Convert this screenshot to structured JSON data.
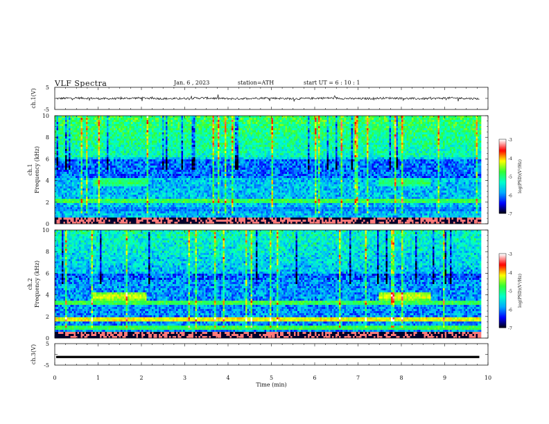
{
  "header": {
    "title": "VLF  Spectra",
    "date": "Jan. 6  , 2023",
    "station": "station=ATH",
    "start": "start  UT  =   6  : 10 : 1"
  },
  "chart_data": [
    {
      "type": "line",
      "panel": "ch1-waveform",
      "ylabel": "ch.1(V)",
      "ylim": [
        -5,
        5
      ],
      "y_ticks": [
        "5",
        "-5"
      ],
      "xlim": [
        0,
        10
      ],
      "description_level": "waveform fluctuating around 0 V with amplitude about 0.5 V, occasional spikes",
      "approx_level": 0
    },
    {
      "type": "heatmap",
      "panel": "ch1-spectrogram",
      "ylabel": "ch.1\nFrequency  (kHz)",
      "ylabel_top": "ch.1",
      "ylabel_bottom": "Frequency  (kHz)",
      "ylim": [
        0,
        10
      ],
      "y_ticks": [
        "0",
        "2",
        "4",
        "6",
        "8",
        "10"
      ],
      "xlim": [
        0,
        10
      ],
      "colorbar": {
        "label": "log(PSD)(V²/Hz)",
        "range": [
          -7,
          -3
        ],
        "ticks": [
          "-3",
          "-4",
          "-5",
          "-6",
          "-7"
        ]
      },
      "bands_khz": [
        {
          "freq": 0.5,
          "level": -4.3
        },
        {
          "freq": 1.5,
          "level": -6.0
        },
        {
          "freq": 2.2,
          "level": -4.8
        },
        {
          "freq": 4.0,
          "level": -4.9,
          "x_ranges": [
            [
              0.85,
              2.1
            ],
            [
              7.45,
              8.65
            ]
          ]
        }
      ],
      "background_level": -5.6
    },
    {
      "type": "heatmap",
      "panel": "ch2-spectrogram",
      "ylabel": "ch.2\nFrequency  (kHz)",
      "ylabel_top": "ch.2",
      "ylabel_bottom": "Frequency  (kHz)",
      "ylim": [
        0,
        10
      ],
      "y_ticks": [
        "0",
        "2",
        "4",
        "6",
        "8",
        "10"
      ],
      "xlim": [
        0,
        10
      ],
      "colorbar": {
        "label": "log(PSD)(V²/Hz)",
        "range": [
          -7,
          -3
        ],
        "ticks": [
          "-3",
          "-4",
          "-5",
          "-6",
          "-7"
        ]
      },
      "bands_khz": [
        {
          "freq": 1.0,
          "level": -4.8
        },
        {
          "freq": 1.9,
          "level": -4.2
        },
        {
          "freq": 3.4,
          "level": -4.8
        },
        {
          "freq": 4.0,
          "level": -4.3,
          "x_ranges": [
            [
              0.85,
              2.1
            ],
            [
              7.45,
              8.65
            ]
          ]
        }
      ],
      "background_level": -5.8
    },
    {
      "type": "line",
      "panel": "ch3-waveform",
      "ylabel": "ch.3(V)",
      "ylim": [
        -5,
        5
      ],
      "y_ticks": [
        "5",
        "-5"
      ],
      "xlim": [
        0,
        10
      ],
      "approx_level": -1.2
    }
  ],
  "x_axis": {
    "label": "Time  (min)",
    "ticks": [
      "0",
      "1",
      "2",
      "3",
      "4",
      "5",
      "6",
      "7",
      "8",
      "9",
      "10"
    ],
    "data_end_min": 9.8
  },
  "colors": {
    "axis": "#111111",
    "colormap": [
      "#000000",
      "#0000ff",
      "#00aaff",
      "#00ffcc",
      "#33ff33",
      "#ffff00",
      "#ff0000",
      "#ffffff"
    ]
  }
}
